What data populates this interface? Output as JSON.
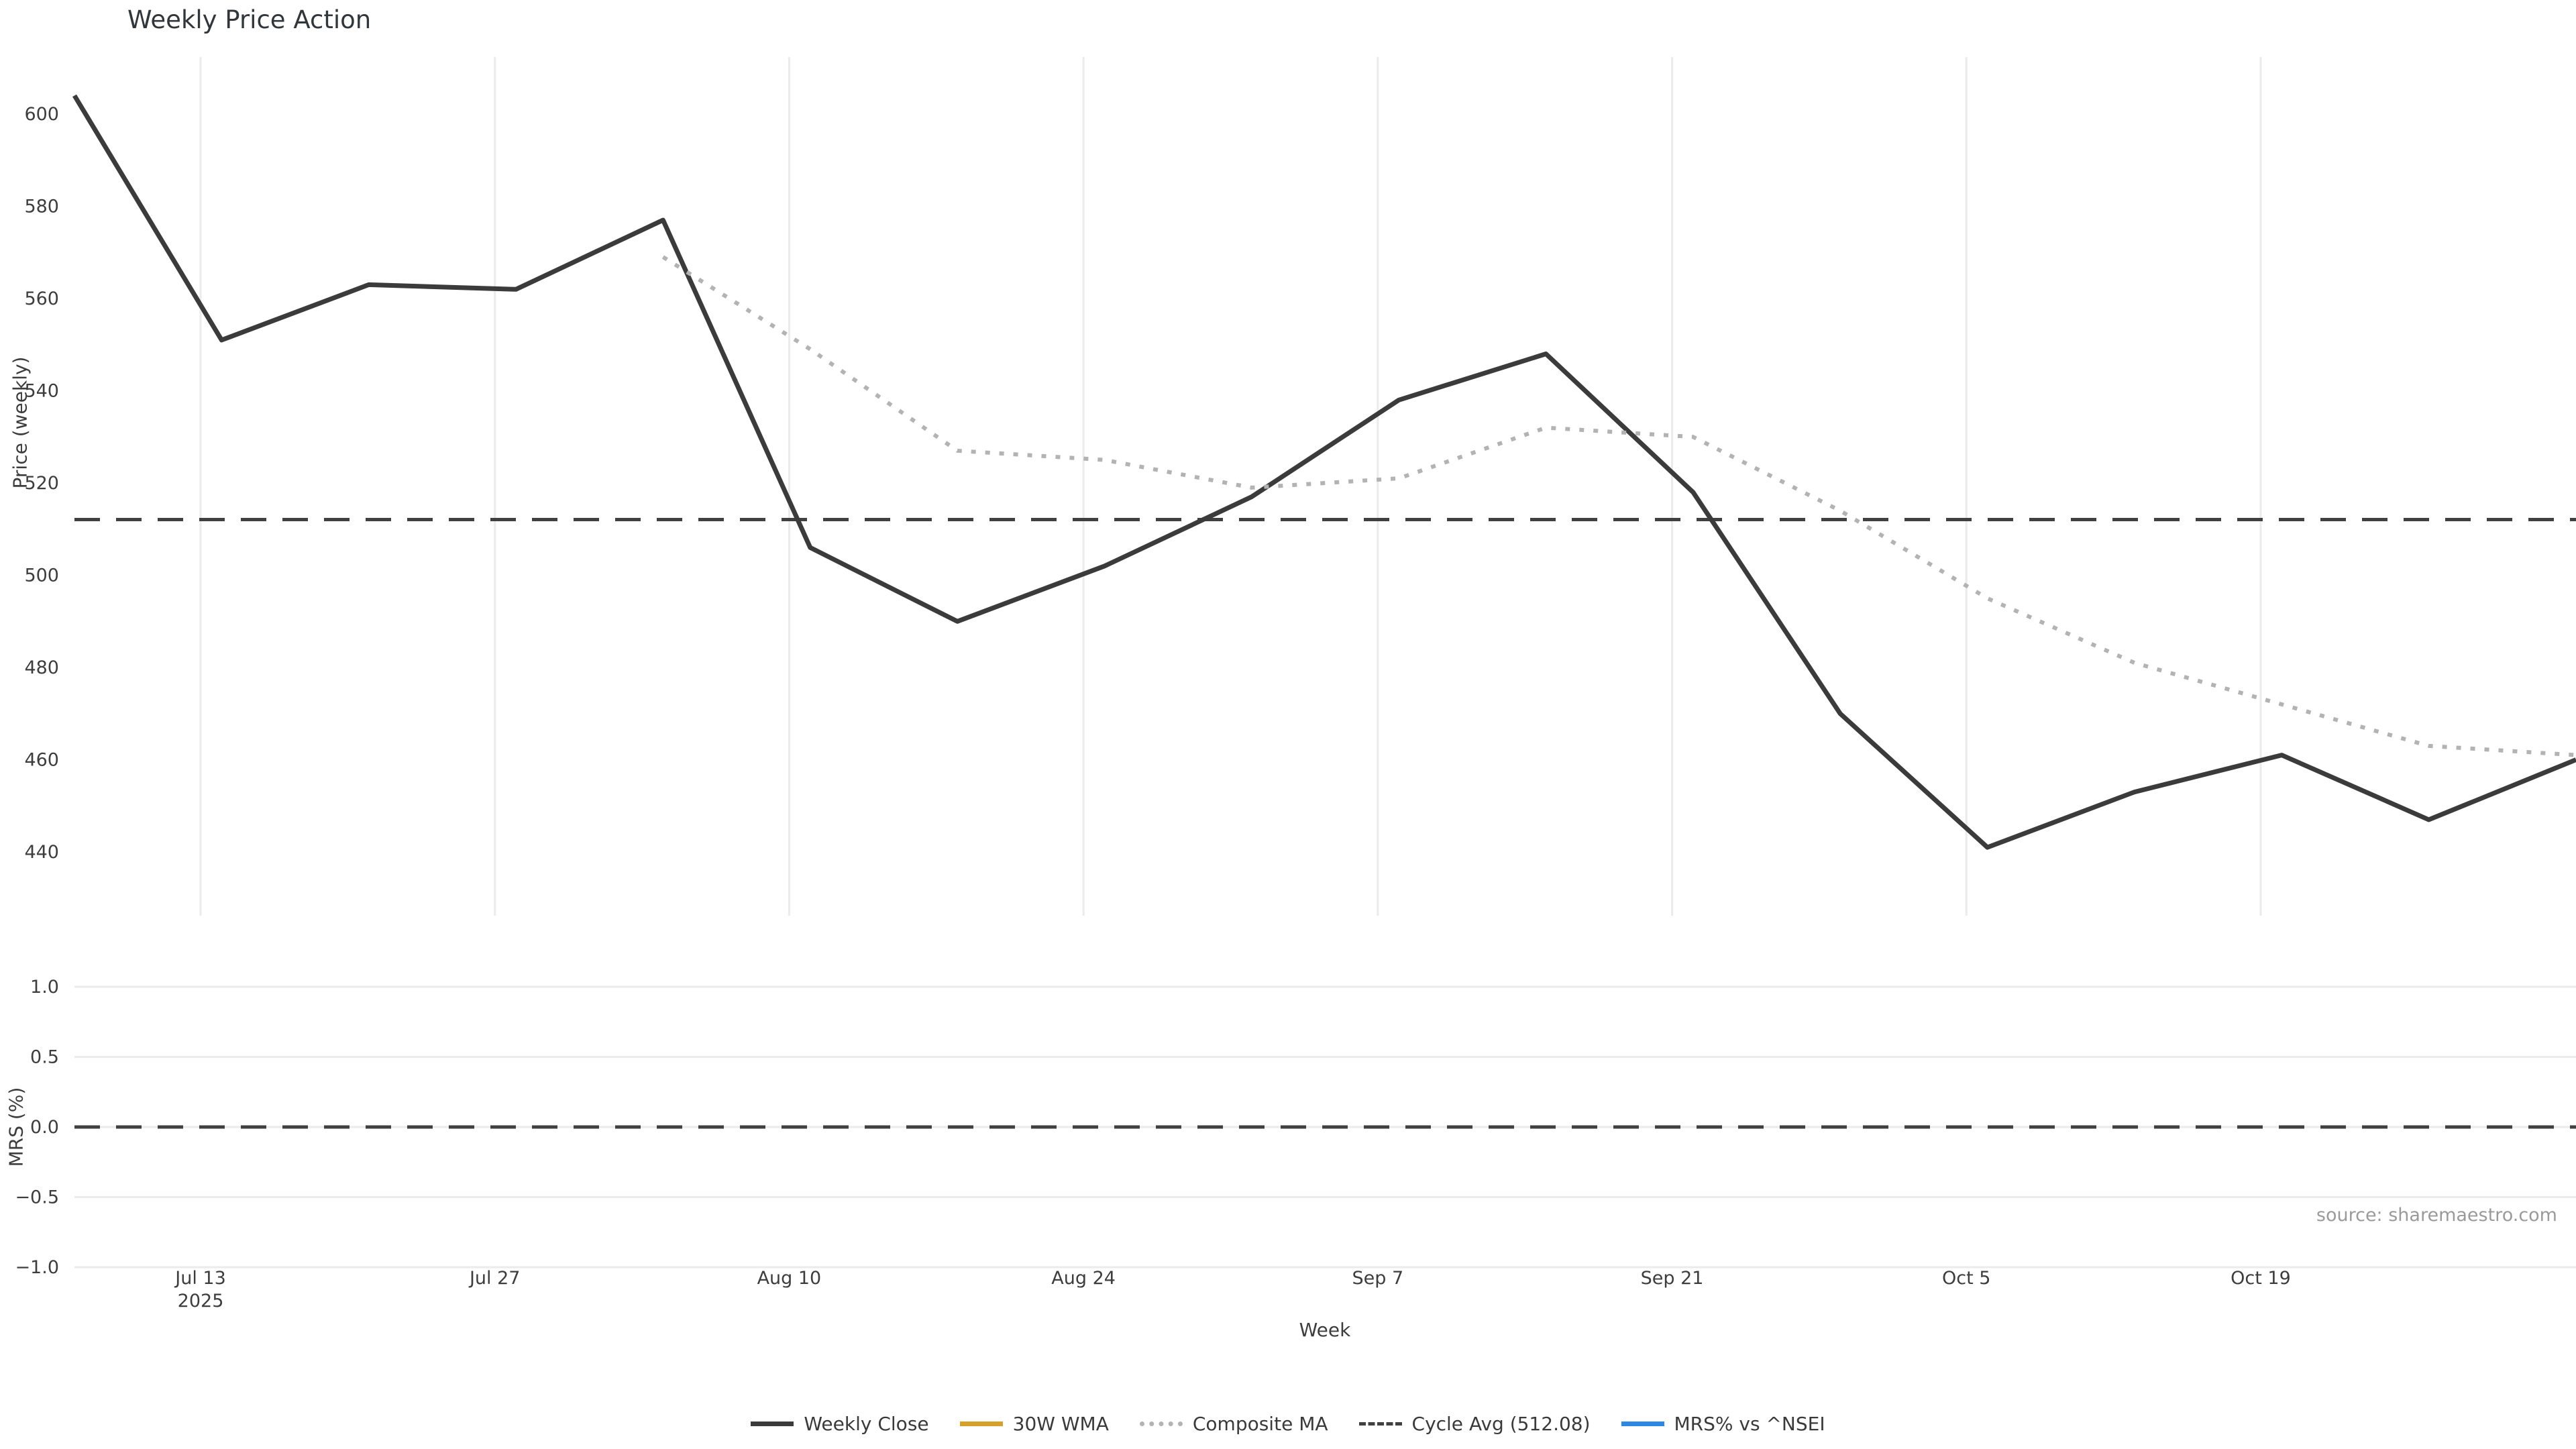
{
  "title": "Weekly Price Action",
  "source": "source: sharemaestro.com",
  "colors": {
    "weekly_close": "#3b3b3b",
    "wma_30w": "#d6a12b",
    "composite_ma": "#b3b3b3",
    "cycle_avg": "#404040",
    "mrs_line": "#2e87e0",
    "gridline": "#ebebeb",
    "tick_label": "#3d3d3d",
    "title_text": "#31363b",
    "source_text": "#9a9a9a"
  },
  "legend": [
    {
      "label": "Weekly Close",
      "style": "solid",
      "color": "#3b3b3b"
    },
    {
      "label": "30W WMA",
      "style": "solid",
      "color": "#d6a12b"
    },
    {
      "label": "Composite MA",
      "style": "dotted",
      "color": "#b3b3b3"
    },
    {
      "label": "Cycle Avg (512.08)",
      "style": "dashed",
      "color": "#404040"
    },
    {
      "label": "MRS% vs ^NSEI",
      "style": "solid",
      "color": "#2e87e0"
    }
  ],
  "chart_data": {
    "type": "line",
    "title": "Weekly Price Action",
    "xlabel": "Week",
    "x_total_days": 119,
    "x_weekly": [
      "Jul 7",
      "Jul 14",
      "Jul 21",
      "Jul 28",
      "Aug 4",
      "Aug 11",
      "Aug 18",
      "Aug 25",
      "Sep 1",
      "Sep 8",
      "Sep 15",
      "Sep 22",
      "Sep 29",
      "Oct 6",
      "Oct 13",
      "Oct 20",
      "Oct 27",
      "Nov 3"
    ],
    "x_ticks": [
      {
        "label": "Jul 13",
        "sublabel": "2025",
        "day": 6
      },
      {
        "label": "Jul 27",
        "day": 20
      },
      {
        "label": "Aug 10",
        "day": 34
      },
      {
        "label": "Aug 24",
        "day": 48
      },
      {
        "label": "Sep 7",
        "day": 62
      },
      {
        "label": "Sep 21",
        "day": 76
      },
      {
        "label": "Oct 5",
        "day": 90
      },
      {
        "label": "Oct 19",
        "day": 104
      }
    ],
    "panels": [
      {
        "name": "price",
        "ylabel": "Price (weekly)",
        "ylim": [
          426,
          612
        ],
        "y_ticks": [
          600,
          580,
          560,
          540,
          520,
          500,
          480,
          460,
          440
        ],
        "cycle_avg": 512.08,
        "series": [
          {
            "name": "Weekly Close",
            "style": "solid",
            "color": "#3b3b3b",
            "values": [
              604,
              551,
              563,
              562,
              577,
              506,
              490,
              502,
              517,
              538,
              548,
              518,
              470,
              441,
              453,
              461,
              447,
              460
            ]
          },
          {
            "name": "Composite MA",
            "style": "dotted",
            "color": "#b3b3b3",
            "values": [
              null,
              null,
              null,
              null,
              569,
              549,
              527,
              525,
              519,
              521,
              532,
              530,
              514,
              495,
              481,
              472,
              463,
              461
            ]
          }
        ]
      },
      {
        "name": "mrs",
        "ylabel": "MRS (%)",
        "ylim": [
          -1.15,
          1.15
        ],
        "y_ticks": [
          "1.0",
          "0.5",
          "0.0",
          "−0.5",
          "−1.0"
        ],
        "zero_dashed": true,
        "series": []
      }
    ]
  }
}
